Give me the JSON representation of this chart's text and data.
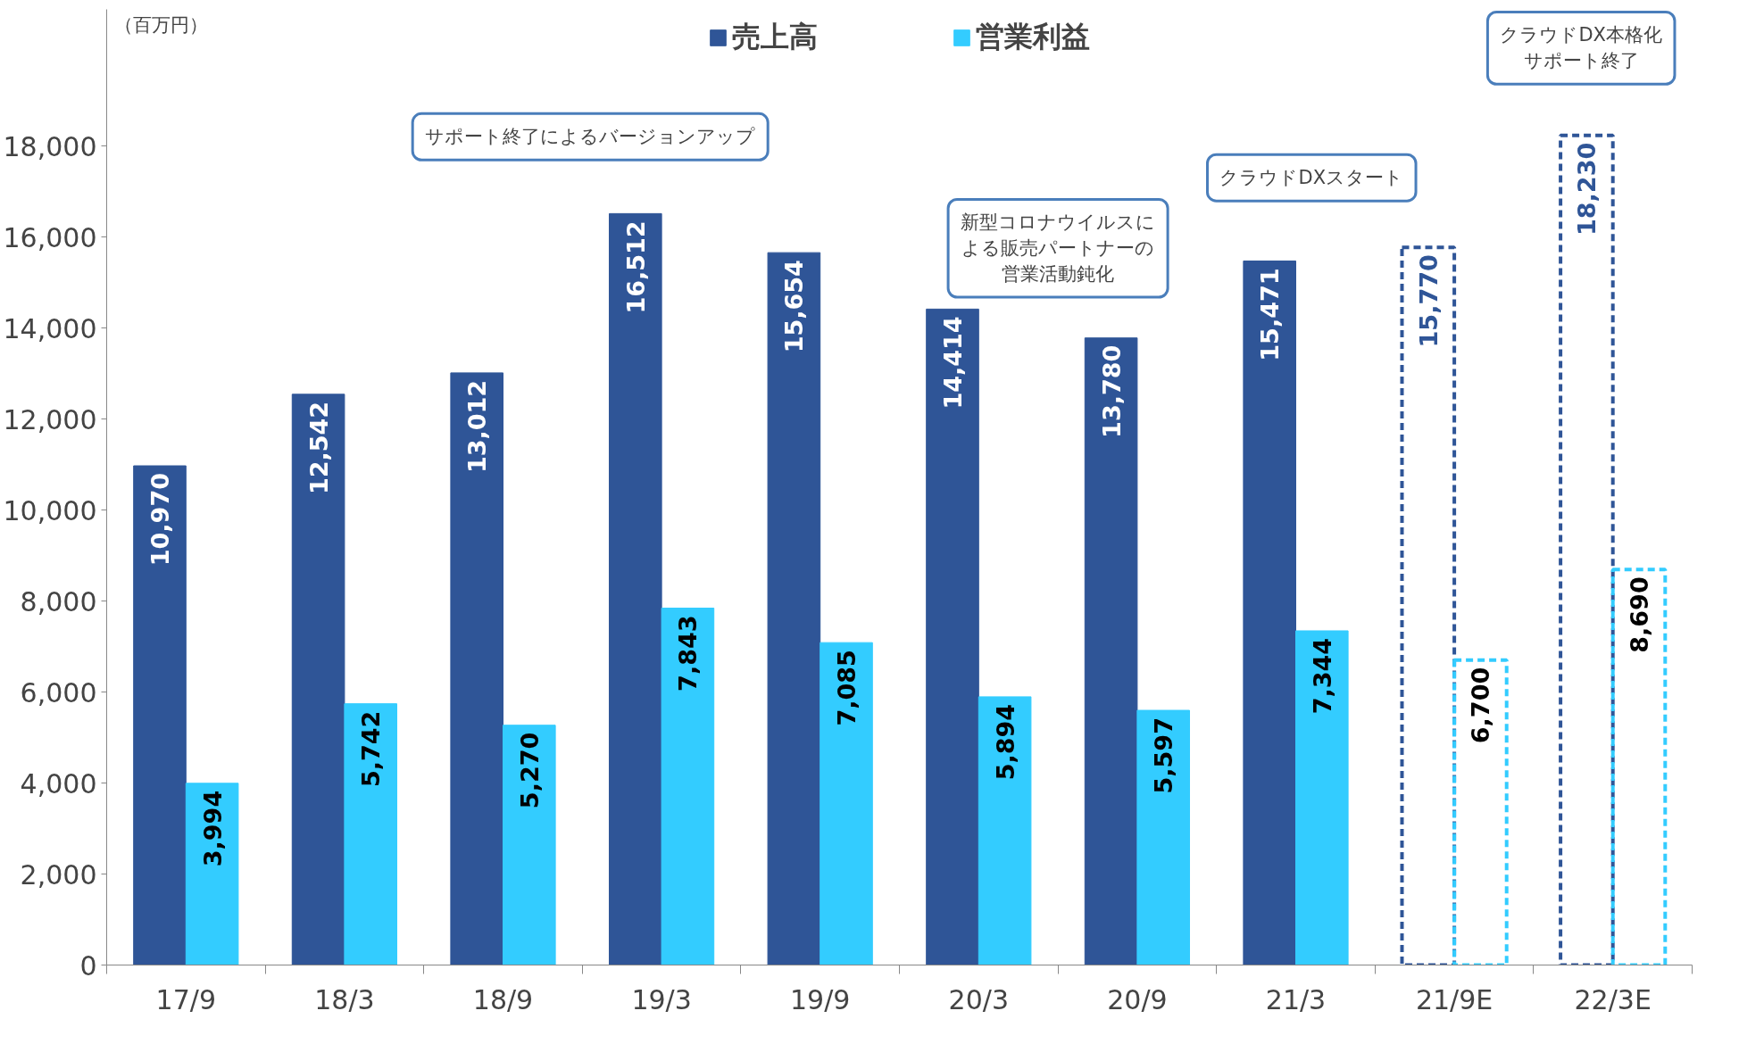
{
  "chart_data": {
    "type": "bar",
    "categories": [
      "17/9",
      "18/3",
      "18/9",
      "19/3",
      "19/9",
      "20/3",
      "20/9",
      "21/3",
      "21/9E",
      "22/3E"
    ],
    "series": [
      {
        "name": "売上高",
        "color": "#2f5597",
        "values": [
          10970,
          12542,
          13012,
          16512,
          15654,
          14414,
          13780,
          15471,
          null,
          null
        ],
        "value_labels": [
          "10,970",
          "12,542",
          "13,012",
          "16,512",
          "15,654",
          "14,414",
          "13,780",
          "15,471",
          null,
          null
        ]
      },
      {
        "name": "営業利益",
        "color": "#33ccff",
        "values": [
          3994,
          5742,
          5270,
          7843,
          7085,
          5894,
          5597,
          7344,
          null,
          null
        ],
        "value_labels": [
          "3,994",
          "5,742",
          "5,270",
          "7,843",
          "7,085",
          "5,894",
          "5,597",
          "7,344",
          null,
          null
        ]
      },
      {
        "color": "#2f5597",
        "line_style": "dashed",
        "values": [
          null,
          null,
          null,
          null,
          null,
          null,
          null,
          null,
          15770,
          18230
        ],
        "value_labels": [
          null,
          null,
          null,
          null,
          null,
          null,
          null,
          null,
          "15,770",
          "18,230"
        ]
      },
      {
        "color": "#33ccff",
        "line_style": "dashed",
        "values": [
          null,
          null,
          null,
          null,
          null,
          null,
          null,
          null,
          6700,
          8690
        ],
        "value_labels": [
          null,
          null,
          null,
          null,
          null,
          null,
          null,
          null,
          "6,700",
          "8,690"
        ]
      }
    ],
    "ylim": [
      0,
      21000
    ],
    "yticks": [
      {
        "value": 0,
        "label": "0"
      },
      {
        "value": 2000,
        "label": "2,000"
      },
      {
        "value": 4000,
        "label": "4,000"
      },
      {
        "value": 6000,
        "label": "6,000"
      },
      {
        "value": 8000,
        "label": "8,000"
      },
      {
        "value": 10000,
        "label": "10,000"
      },
      {
        "value": 12000,
        "label": "12,000"
      },
      {
        "value": 14000,
        "label": "14,000"
      },
      {
        "value": 16000,
        "label": "16,000"
      },
      {
        "value": 18000,
        "label": "18,000"
      }
    ],
    "legend": "top",
    "grid": false,
    "annotations": [
      "（百万円）",
      "サポート終了によるバージョンアップ",
      "新型コロナウイルスによる販売パートナーの営業活動鈍化",
      "クラウドDXスタート",
      "クラウドDX本格化サポート終了"
    ]
  }
}
